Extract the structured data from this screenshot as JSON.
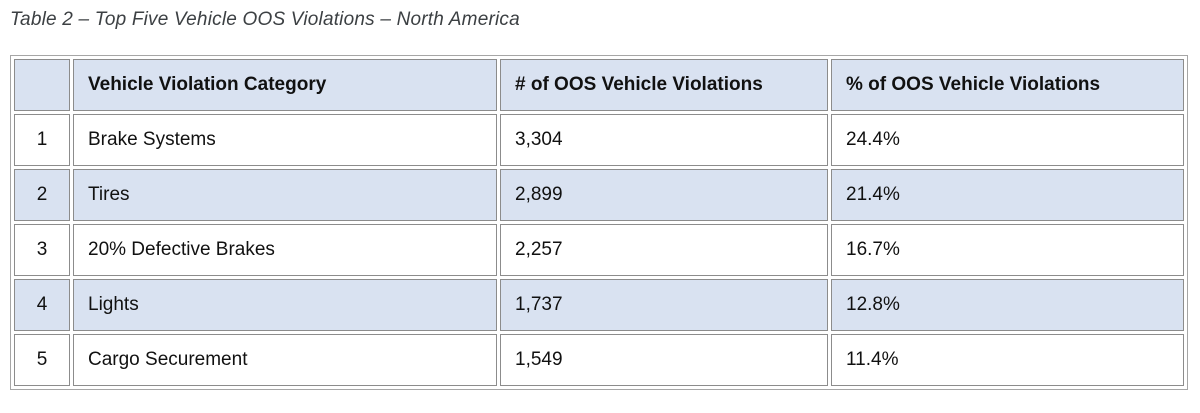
{
  "page": {
    "caption": "Table 2 – Top Five Vehicle OOS Violations – North America"
  },
  "table": {
    "columns": [
      "",
      "Vehicle Violation Category",
      "# of OOS Vehicle Violations",
      "% of OOS Vehicle Violations"
    ],
    "rows": [
      {
        "rank": "1",
        "category": "Brake Systems",
        "count": "3,304",
        "percent": "24.4%"
      },
      {
        "rank": "2",
        "category": "Tires",
        "count": "2,899",
        "percent": "21.4%"
      },
      {
        "rank": "3",
        "category": "20% Defective Brakes",
        "count": "2,257",
        "percent": "16.7%"
      },
      {
        "rank": "4",
        "category": "Lights",
        "count": "1,737",
        "percent": "12.8%"
      },
      {
        "rank": "5",
        "category": "Cargo Securement",
        "count": "1,549",
        "percent": "11.4%"
      }
    ]
  },
  "chart_data": {
    "type": "table",
    "title": "Table 2 – Top Five Vehicle OOS Violations – North America",
    "categories": [
      "Brake Systems",
      "Tires",
      "20% Defective Brakes",
      "Lights",
      "Cargo Securement"
    ],
    "series": [
      {
        "name": "# of OOS Vehicle Violations",
        "values": [
          3304,
          2899,
          2257,
          1737,
          1549
        ]
      },
      {
        "name": "% of OOS Vehicle Violations",
        "values": [
          24.4,
          21.4,
          16.7,
          12.8,
          11.4
        ]
      }
    ]
  },
  "colors": {
    "header_bg": "#d9e2f1",
    "stripe_bg": "#d9e2f1",
    "cell_border": "#8c8c8c",
    "outer_border": "#a6a6a6",
    "caption_color": "#3c4043"
  }
}
